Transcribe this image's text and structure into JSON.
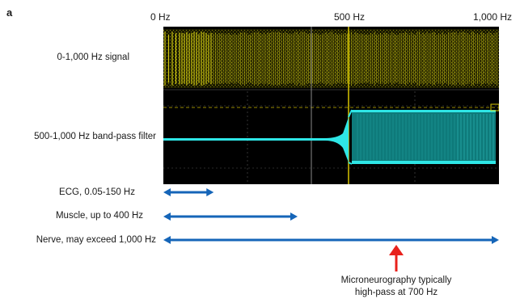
{
  "panel_label": "a",
  "frequency_axis": {
    "ticks": [
      {
        "label": "0 Hz",
        "value": 0
      },
      {
        "label": "500 Hz",
        "value": 500
      },
      {
        "label": "1,000 Hz",
        "value": 1000
      }
    ]
  },
  "traces": [
    {
      "label": "0-1,000 Hz signal",
      "color": "#e6df16"
    },
    {
      "label": "500-1,000 Hz band-pass filter",
      "color": "#2ee6e6"
    }
  ],
  "ranges": [
    {
      "label": "ECG, 0.05-150 Hz",
      "from_hz": 0.05,
      "to_hz": 150
    },
    {
      "label": "Muscle, up to 400 Hz",
      "from_hz": 0,
      "to_hz": 400
    },
    {
      "label": "Nerve, may exceed 1,000 Hz",
      "from_hz": 0,
      "to_hz": 1000
    }
  ],
  "annotation": {
    "line1": "Microneurography typically",
    "line2": "high-pass at 700 Hz",
    "at_hz": 700,
    "color": "#e8211c"
  },
  "arrow_color": "#1565b8"
}
